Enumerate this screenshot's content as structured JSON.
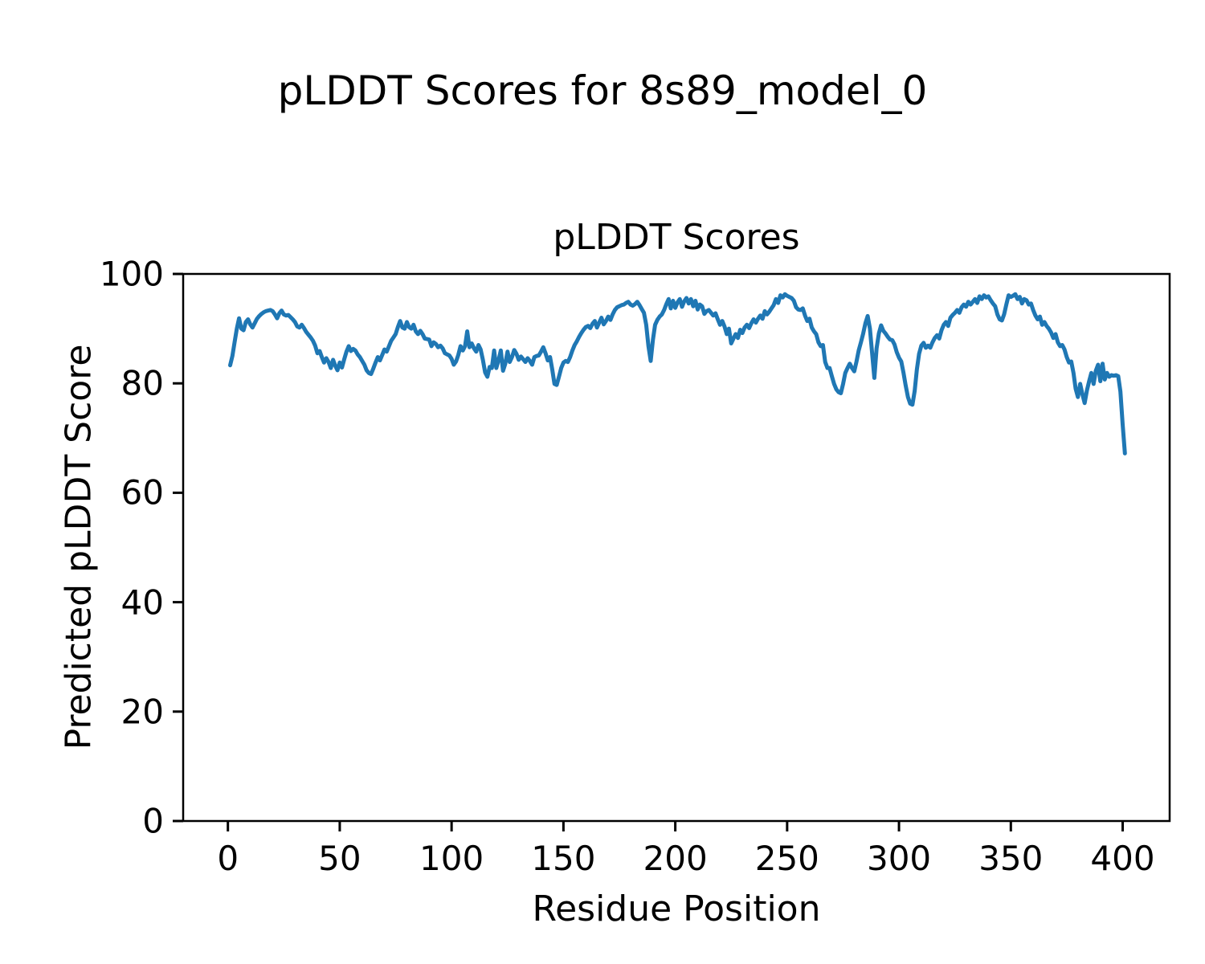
{
  "figure": {
    "suptitle": "pLDDT Scores for 8s89_model_0"
  },
  "chart_data": {
    "type": "line",
    "title": "pLDDT Scores",
    "xlabel": "Residue Position",
    "ylabel": "Predicted pLDDT Score",
    "xlim": [
      -20,
      421
    ],
    "ylim": [
      0,
      100
    ],
    "x_ticks": [
      0,
      50,
      100,
      150,
      200,
      250,
      300,
      350,
      400
    ],
    "y_ticks": [
      0,
      20,
      40,
      60,
      80,
      100
    ],
    "grid": false,
    "line_color": "#1f77b4",
    "axis_color": "#000000",
    "series": [
      {
        "x_start": 1,
        "x_step": 1,
        "values": [
          83.3,
          85.0,
          87.5,
          90.0,
          91.9,
          90.0,
          89.7,
          91.2,
          91.7,
          90.8,
          90.2,
          91.0,
          91.8,
          92.3,
          92.7,
          93.0,
          93.2,
          93.3,
          93.4,
          93.2,
          92.6,
          91.9,
          92.8,
          93.3,
          92.6,
          92.4,
          92.5,
          92.1,
          91.7,
          91.2,
          90.4,
          90.2,
          90.7,
          90.1,
          89.4,
          88.9,
          88.4,
          87.8,
          86.9,
          85.5,
          85.9,
          84.8,
          83.8,
          84.6,
          83.9,
          82.8,
          84.3,
          83.2,
          82.4,
          83.8,
          82.9,
          84.4,
          85.8,
          86.8,
          85.9,
          86.3,
          86.0,
          85.3,
          84.8,
          84.1,
          83.4,
          82.4,
          81.9,
          81.7,
          82.7,
          83.8,
          84.8,
          84.2,
          85.2,
          86.2,
          85.8,
          86.8,
          87.8,
          88.4,
          89.0,
          90.3,
          91.4,
          90.2,
          90.0,
          91.2,
          90.3,
          90.0,
          90.7,
          89.5,
          89.0,
          89.6,
          89.0,
          88.2,
          88.1,
          88.0,
          86.8,
          87.5,
          87.2,
          86.6,
          86.9,
          86.4,
          85.5,
          85.3,
          85.1,
          84.5,
          83.4,
          84.0,
          85.2,
          86.8,
          86.0,
          86.8,
          89.5,
          86.6,
          87.3,
          86.4,
          85.8,
          87.0,
          86.2,
          84.3,
          82.0,
          81.2,
          83.0,
          82.8,
          86.0,
          82.8,
          84.2,
          86.0,
          82.3,
          83.6,
          85.8,
          83.9,
          84.8,
          86.1,
          85.4,
          84.3,
          84.9,
          84.4,
          83.9,
          84.6,
          84.1,
          83.4,
          84.8,
          85.0,
          85.1,
          85.8,
          86.6,
          85.5,
          84.2,
          84.8,
          82.5,
          79.9,
          79.7,
          81.2,
          82.8,
          83.8,
          84.1,
          83.9,
          84.8,
          86.0,
          87.0,
          87.7,
          88.5,
          89.2,
          89.8,
          90.3,
          90.5,
          90.1,
          90.9,
          91.4,
          90.2,
          91.1,
          92.0,
          90.8,
          91.4,
          92.2,
          91.6,
          92.6,
          93.4,
          93.9,
          94.1,
          94.3,
          94.4,
          94.7,
          94.9,
          94.4,
          94.2,
          94.5,
          94.9,
          94.3,
          93.6,
          92.9,
          90.7,
          86.8,
          84.1,
          88.0,
          90.7,
          91.6,
          92.2,
          92.6,
          93.4,
          94.5,
          95.4,
          93.7,
          95.1,
          93.8,
          94.8,
          95.4,
          94.0,
          95.0,
          95.6,
          94.6,
          95.4,
          94.1,
          95.1,
          93.5,
          94.4,
          94.1,
          92.7,
          93.2,
          93.4,
          92.9,
          92.4,
          92.8,
          91.7,
          90.7,
          91.4,
          90.4,
          89.0,
          90.0,
          87.3,
          88.2,
          89.0,
          88.3,
          89.8,
          89.2,
          90.2,
          90.7,
          90.1,
          91.0,
          91.7,
          91.1,
          91.8,
          92.4,
          91.8,
          93.2,
          92.6,
          93.1,
          93.7,
          94.3,
          95.4,
          94.7,
          96.1,
          95.7,
          96.3,
          96.0,
          95.8,
          95.6,
          95.1,
          93.9,
          93.5,
          93.4,
          93.7,
          92.4,
          91.4,
          91.8,
          90.2,
          89.5,
          89.0,
          87.5,
          86.8,
          87.0,
          83.9,
          82.8,
          82.8,
          81.3,
          79.9,
          78.9,
          78.4,
          78.2,
          79.9,
          81.9,
          82.8,
          83.6,
          82.8,
          82.2,
          84.0,
          86.0,
          87.5,
          89.1,
          91.0,
          92.3,
          90.0,
          85.4,
          81.0,
          86.4,
          89.1,
          90.6,
          89.6,
          89.1,
          88.5,
          88.0,
          87.9,
          87.1,
          85.7,
          84.7,
          84.0,
          82.0,
          79.6,
          77.5,
          76.3,
          76.1,
          78.6,
          82.5,
          85.4,
          86.9,
          87.4,
          86.5,
          86.9,
          86.5,
          87.5,
          88.3,
          88.8,
          88.2,
          89.7,
          90.7,
          91.2,
          90.5,
          92.0,
          92.5,
          92.9,
          93.4,
          92.9,
          93.9,
          94.4,
          94.0,
          94.9,
          94.4,
          94.9,
          95.4,
          94.7,
          95.9,
          95.4,
          96.1,
          95.7,
          95.9,
          95.2,
          94.6,
          94.1,
          92.6,
          91.7,
          91.5,
          92.6,
          94.4,
          96.1,
          95.8,
          96.0,
          96.3,
          95.4,
          95.8,
          94.6,
          95.4,
          95.2,
          94.4,
          94.6,
          93.4,
          92.4,
          91.7,
          92.2,
          90.7,
          91.2,
          90.5,
          90.0,
          89.3,
          88.3,
          89.0,
          87.5,
          86.8,
          87.0,
          86.2,
          84.8,
          83.8,
          84.0,
          81.9,
          79.0,
          77.5,
          79.9,
          78.0,
          76.4,
          78.7,
          80.4,
          81.9,
          79.9,
          82.3,
          83.4,
          80.4,
          83.6,
          80.7,
          81.9,
          81.2,
          81.5,
          81.4,
          81.5,
          81.3,
          78.5,
          72.5,
          67.2
        ]
      }
    ]
  }
}
